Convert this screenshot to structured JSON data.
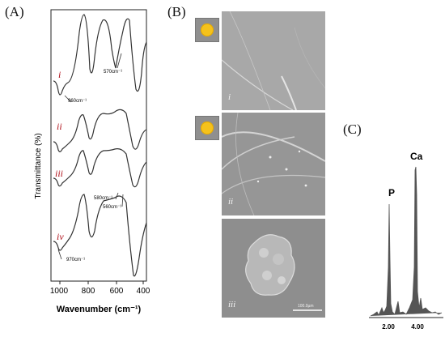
{
  "panels": {
    "a": "(A)",
    "b": "(B)",
    "c": "(C)"
  },
  "ftir": {
    "ylabel": "Transmittance (%)",
    "xlabel": "Wavenumber (cm⁻¹)",
    "xticks": [
      "1000",
      "800",
      "600",
      "400"
    ],
    "spectrum_labels": [
      "i",
      "ii",
      "iii",
      "iv"
    ],
    "annotations": {
      "a570": "570cm⁻¹",
      "a960": "960cm⁻¹",
      "a580": "580cm⁻¹",
      "a560": "560cm⁻¹",
      "a970": "970cm⁻¹"
    }
  },
  "sem": {
    "roman": [
      "i",
      "ii",
      "iii"
    ],
    "scalebar": "100.0µm"
  },
  "eds": {
    "p_label": "P",
    "ca_label": "Ca",
    "xticks": [
      "2.00",
      "4.00"
    ]
  },
  "colors": {
    "roman_label_ftir": "#b0101a",
    "thumb_particle": "#f5c21b"
  }
}
